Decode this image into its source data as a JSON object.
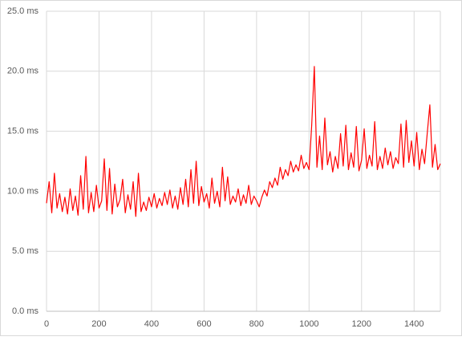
{
  "chart_data": {
    "type": "line",
    "x": [
      0,
      10,
      20,
      30,
      40,
      50,
      60,
      70,
      80,
      90,
      100,
      110,
      120,
      130,
      140,
      150,
      160,
      170,
      180,
      190,
      200,
      210,
      220,
      230,
      240,
      250,
      260,
      270,
      280,
      290,
      300,
      310,
      320,
      330,
      340,
      350,
      360,
      370,
      380,
      390,
      400,
      410,
      420,
      430,
      440,
      450,
      460,
      470,
      480,
      490,
      500,
      510,
      520,
      530,
      540,
      550,
      560,
      570,
      580,
      590,
      600,
      610,
      620,
      630,
      640,
      650,
      660,
      670,
      680,
      690,
      700,
      710,
      720,
      730,
      740,
      750,
      760,
      770,
      780,
      790,
      800,
      810,
      820,
      830,
      840,
      850,
      860,
      870,
      880,
      890,
      900,
      910,
      920,
      930,
      940,
      950,
      960,
      970,
      980,
      990,
      1000,
      1010,
      1020,
      1030,
      1040,
      1050,
      1060,
      1070,
      1080,
      1090,
      1100,
      1110,
      1120,
      1130,
      1140,
      1150,
      1160,
      1170,
      1180,
      1190,
      1200,
      1210,
      1220,
      1230,
      1240,
      1250,
      1260,
      1270,
      1280,
      1290,
      1300,
      1310,
      1320,
      1330,
      1340,
      1350,
      1360,
      1370,
      1380,
      1390,
      1400,
      1410,
      1420,
      1430,
      1440,
      1450,
      1460,
      1470,
      1480,
      1490,
      1500
    ],
    "series": [
      {
        "color": "#ff0000",
        "values": [
          9.0,
          10.8,
          8.2,
          11.5,
          8.6,
          9.8,
          8.3,
          9.5,
          8.1,
          10.2,
          8.4,
          9.6,
          8.0,
          11.3,
          8.5,
          12.9,
          8.2,
          9.9,
          8.3,
          10.5,
          8.6,
          9.2,
          12.7,
          8.4,
          11.9,
          8.1,
          10.6,
          8.7,
          9.3,
          11.0,
          8.2,
          9.7,
          8.5,
          10.8,
          7.9,
          11.5,
          8.3,
          9.1,
          8.4,
          9.5,
          8.7,
          9.8,
          8.6,
          9.4,
          8.8,
          9.9,
          8.9,
          10.1,
          8.6,
          9.6,
          8.5,
          10.3,
          8.9,
          11.0,
          8.7,
          11.8,
          9.0,
          12.5,
          8.8,
          10.4,
          9.1,
          9.8,
          8.6,
          11.1,
          9.0,
          10.0,
          8.7,
          12.0,
          9.2,
          11.2,
          8.9,
          9.6,
          9.1,
          10.2,
          8.8,
          9.7,
          9.0,
          10.5,
          8.9,
          9.6,
          9.2,
          8.7,
          9.5,
          10.1,
          9.6,
          10.8,
          10.3,
          11.1,
          10.5,
          12.0,
          11.0,
          11.8,
          11.3,
          12.5,
          11.6,
          12.2,
          11.7,
          13.0,
          11.9,
          12.4,
          11.8,
          15.5,
          20.4,
          12.0,
          14.6,
          11.8,
          16.1,
          12.2,
          13.3,
          11.6,
          12.9,
          11.9,
          14.8,
          12.1,
          15.5,
          11.8,
          13.2,
          12.0,
          15.4,
          11.7,
          12.6,
          15.2,
          11.9,
          13.0,
          12.1,
          15.8,
          11.8,
          12.9,
          11.9,
          13.6,
          12.2,
          13.3,
          11.9,
          12.8,
          12.3,
          15.6,
          12.0,
          15.9,
          12.4,
          14.2,
          12.1,
          14.9,
          11.8,
          13.5,
          12.3,
          14.8,
          17.2,
          12.0,
          13.9,
          11.8,
          12.3
        ]
      }
    ],
    "xlim": [
      0,
      1500
    ],
    "xticks": [
      0,
      200,
      400,
      600,
      800,
      1000,
      1200,
      1400
    ],
    "ylim": [
      0,
      25
    ],
    "yticks": [
      {
        "value": 0,
        "label": "0.0 ms"
      },
      {
        "value": 5,
        "label": "5.0 ms"
      },
      {
        "value": 10,
        "label": "10.0 ms"
      },
      {
        "value": 15,
        "label": "15.0 ms"
      },
      {
        "value": 20,
        "label": "20.0 ms"
      },
      {
        "value": 25,
        "label": "25.0 ms"
      }
    ],
    "grid": true
  }
}
